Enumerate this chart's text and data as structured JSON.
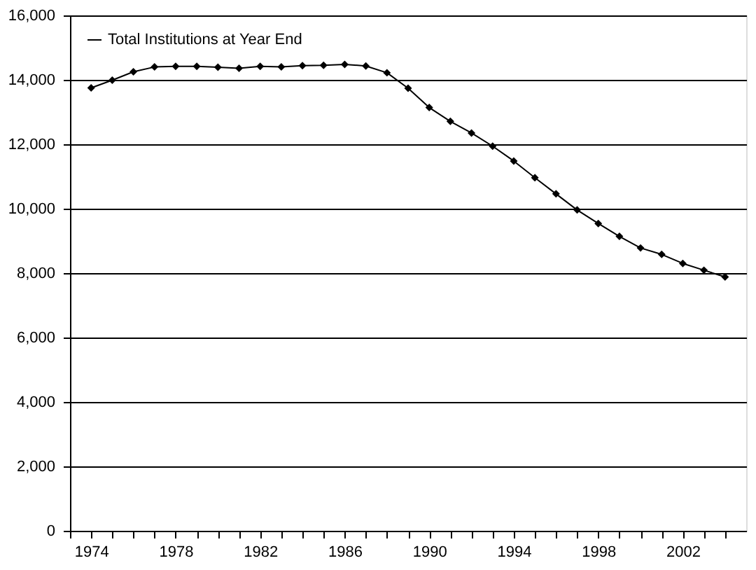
{
  "chart_data": {
    "type": "line",
    "x": [
      1974,
      1975,
      1976,
      1977,
      1978,
      1979,
      1980,
      1981,
      1982,
      1983,
      1984,
      1985,
      1986,
      1987,
      1988,
      1989,
      1990,
      1991,
      1992,
      1993,
      1994,
      1995,
      1996,
      1997,
      1998,
      1999,
      2000,
      2001,
      2002,
      2003,
      2004
    ],
    "series": [
      {
        "name": "Total Institutions at Year End",
        "color": "#000000",
        "values": [
          13750,
          13990,
          14250,
          14400,
          14420,
          14420,
          14390,
          14360,
          14420,
          14400,
          14440,
          14450,
          14480,
          14430,
          14220,
          13740,
          13140,
          12710,
          12350,
          11940,
          11480,
          10960,
          10460,
          9960,
          9540,
          9140,
          8780,
          8580,
          8300,
          8090,
          7880
        ]
      }
    ],
    "xlim": [
      1973,
      2005
    ],
    "xticks": [
      {
        "value": 1973,
        "label": null
      },
      1974,
      {
        "value": 1975,
        "label": null
      },
      {
        "value": 1976,
        "label": null
      },
      {
        "value": 1977,
        "label": null
      },
      1978,
      {
        "value": 1979,
        "label": null
      },
      {
        "value": 1980,
        "label": null
      },
      {
        "value": 1981,
        "label": null
      },
      1982,
      {
        "value": 1983,
        "label": null
      },
      {
        "value": 1984,
        "label": null
      },
      {
        "value": 1985,
        "label": null
      },
      1986,
      {
        "value": 1987,
        "label": null
      },
      {
        "value": 1988,
        "label": null
      },
      {
        "value": 1989,
        "label": null
      },
      1990,
      {
        "value": 1991,
        "label": null
      },
      {
        "value": 1992,
        "label": null
      },
      {
        "value": 1993,
        "label": null
      },
      1994,
      {
        "value": 1995,
        "label": null
      },
      {
        "value": 1996,
        "label": null
      },
      {
        "value": 1997,
        "label": null
      },
      1998,
      {
        "value": 1999,
        "label": null
      },
      {
        "value": 2000,
        "label": null
      },
      {
        "value": 2001,
        "label": null
      },
      2002,
      {
        "value": 2003,
        "label": null
      },
      {
        "value": 2004,
        "label": null
      }
    ],
    "ylim": [
      0,
      16000
    ],
    "yticks": [
      0,
      {
        "value": 2000,
        "label": "2,000"
      },
      {
        "value": 4000,
        "label": "4,000"
      },
      {
        "value": 6000,
        "label": "6,000"
      },
      {
        "value": 8000,
        "label": "8,000"
      },
      {
        "value": 10000,
        "label": "10,000"
      },
      {
        "value": 12000,
        "label": "12,000"
      },
      {
        "value": 14000,
        "label": "14,000"
      },
      {
        "value": 16000,
        "label": "16,000"
      }
    ],
    "grid": "y",
    "legend": "top left",
    "marker": "diamond",
    "line_style": "solid"
  }
}
